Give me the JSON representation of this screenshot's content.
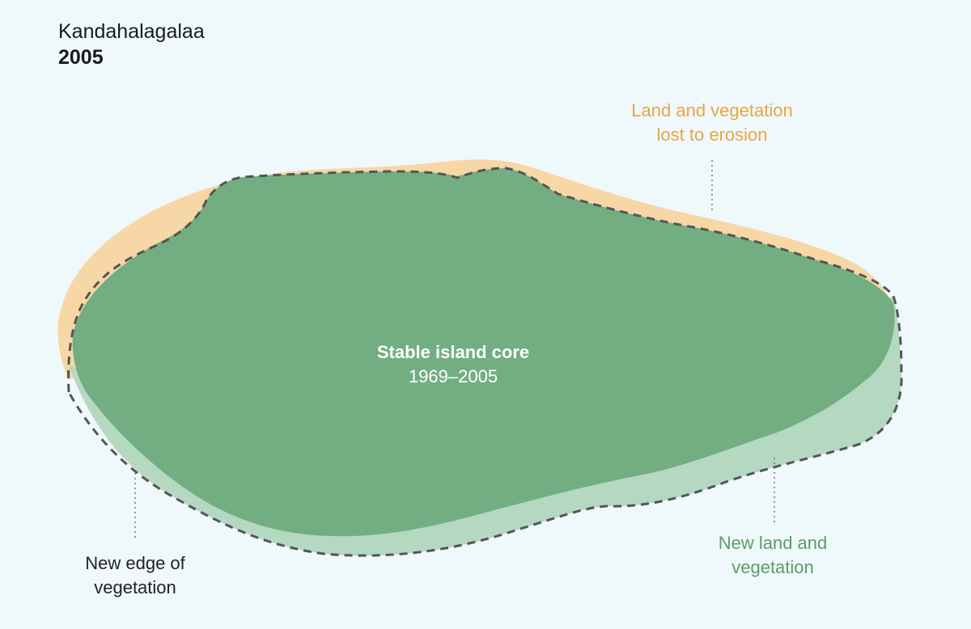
{
  "header": {
    "place_name": "Kandahalagalaa",
    "year": "2005"
  },
  "labels": {
    "erosion": [
      "Land and vegetation",
      "lost to erosion"
    ],
    "core_title": "Stable island core",
    "core_period": "1969–2005",
    "new_edge": [
      "New edge of",
      "vegetation"
    ],
    "new_land": [
      "New land and",
      "vegetation"
    ]
  },
  "colors": {
    "background": "#eff8fb",
    "erosion": "#f7d7a6",
    "stable_core": "#72ae82",
    "new_land": "#b4d8c0",
    "outline": "#555555",
    "erosion_text": "#e8a646",
    "new_land_text": "#5a9e66"
  }
}
